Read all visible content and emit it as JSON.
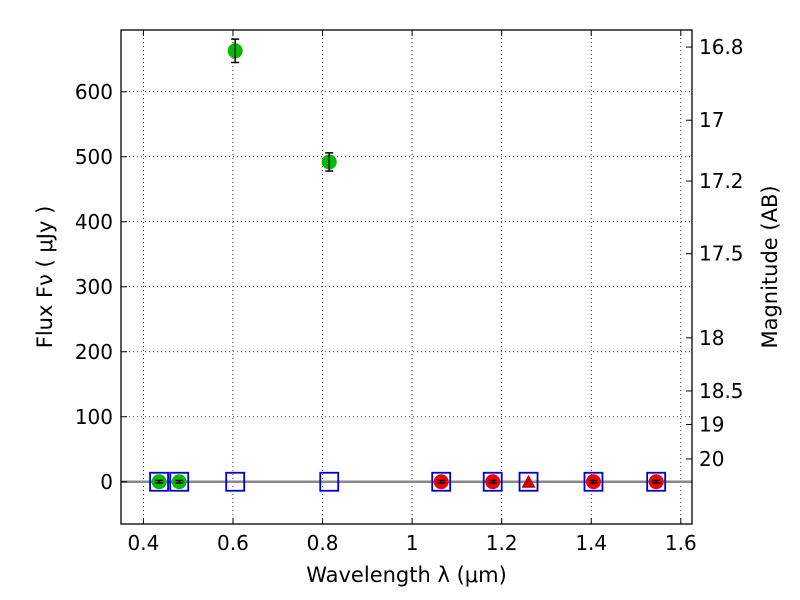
{
  "chart_data": {
    "type": "scatter",
    "title": "",
    "xlabel": "Wavelength  λ (μm)",
    "ylabel": "Flux  Fν  ( μJy )",
    "ylabel_right": "Magnitude (AB)",
    "xlim": [
      0.35,
      1.625
    ],
    "ylim": [
      -65,
      695
    ],
    "grid": true,
    "x_ticks": [
      0.4,
      0.6,
      0.8,
      1.0,
      1.2,
      1.4,
      1.6
    ],
    "x_tick_labels": [
      "0.4",
      "0.6",
      "0.8",
      "1",
      "1.2",
      "1.4",
      "1.6"
    ],
    "y_ticks": [
      0,
      100,
      200,
      300,
      400,
      500,
      600
    ],
    "y_tick_labels": [
      "0",
      "100",
      "200",
      "300",
      "400",
      "500",
      "600"
    ],
    "right_ticks": [
      {
        "label": "16.8",
        "flux": 668.7
      },
      {
        "label": "17",
        "flux": 556.2
      },
      {
        "label": "17.2",
        "flux": 462.6
      },
      {
        "label": "17.5",
        "flux": 350.9
      },
      {
        "label": "18",
        "flux": 221.4
      },
      {
        "label": "18.5",
        "flux": 139.7
      },
      {
        "label": "19",
        "flux": 88.1
      },
      {
        "label": "20",
        "flux": 35.1
      }
    ],
    "series": [
      {
        "marker": "circle",
        "color": "#00bb00",
        "points": [
          {
            "x": 0.435,
            "y": 0,
            "err": 2
          },
          {
            "x": 0.48,
            "y": 0,
            "err": 2
          },
          {
            "x": 0.605,
            "y": 663,
            "err": 18
          },
          {
            "x": 0.815,
            "y": 492,
            "err": 14
          }
        ]
      },
      {
        "marker": "circle",
        "color": "#ee0000",
        "points": [
          {
            "x": 1.065,
            "y": 0,
            "err": 2
          },
          {
            "x": 1.18,
            "y": 0,
            "err": 2
          },
          {
            "x": 1.405,
            "y": 0,
            "err": 2
          },
          {
            "x": 1.545,
            "y": 0,
            "err": 2
          }
        ]
      },
      {
        "marker": "triangle",
        "color": "#cc0000",
        "points": [
          {
            "x": 1.26,
            "y": 0
          }
        ]
      },
      {
        "marker": "square-open",
        "color": "#0000cc",
        "points": [
          {
            "x": 0.435,
            "y": 0
          },
          {
            "x": 0.48,
            "y": 0
          },
          {
            "x": 0.605,
            "y": 0
          },
          {
            "x": 0.815,
            "y": 0
          },
          {
            "x": 1.065,
            "y": 0
          },
          {
            "x": 1.18,
            "y": 0
          },
          {
            "x": 1.26,
            "y": 0
          },
          {
            "x": 1.405,
            "y": 0
          },
          {
            "x": 1.545,
            "y": 0
          }
        ]
      }
    ],
    "zero_line": {
      "y": 0,
      "color": "#888888"
    }
  }
}
